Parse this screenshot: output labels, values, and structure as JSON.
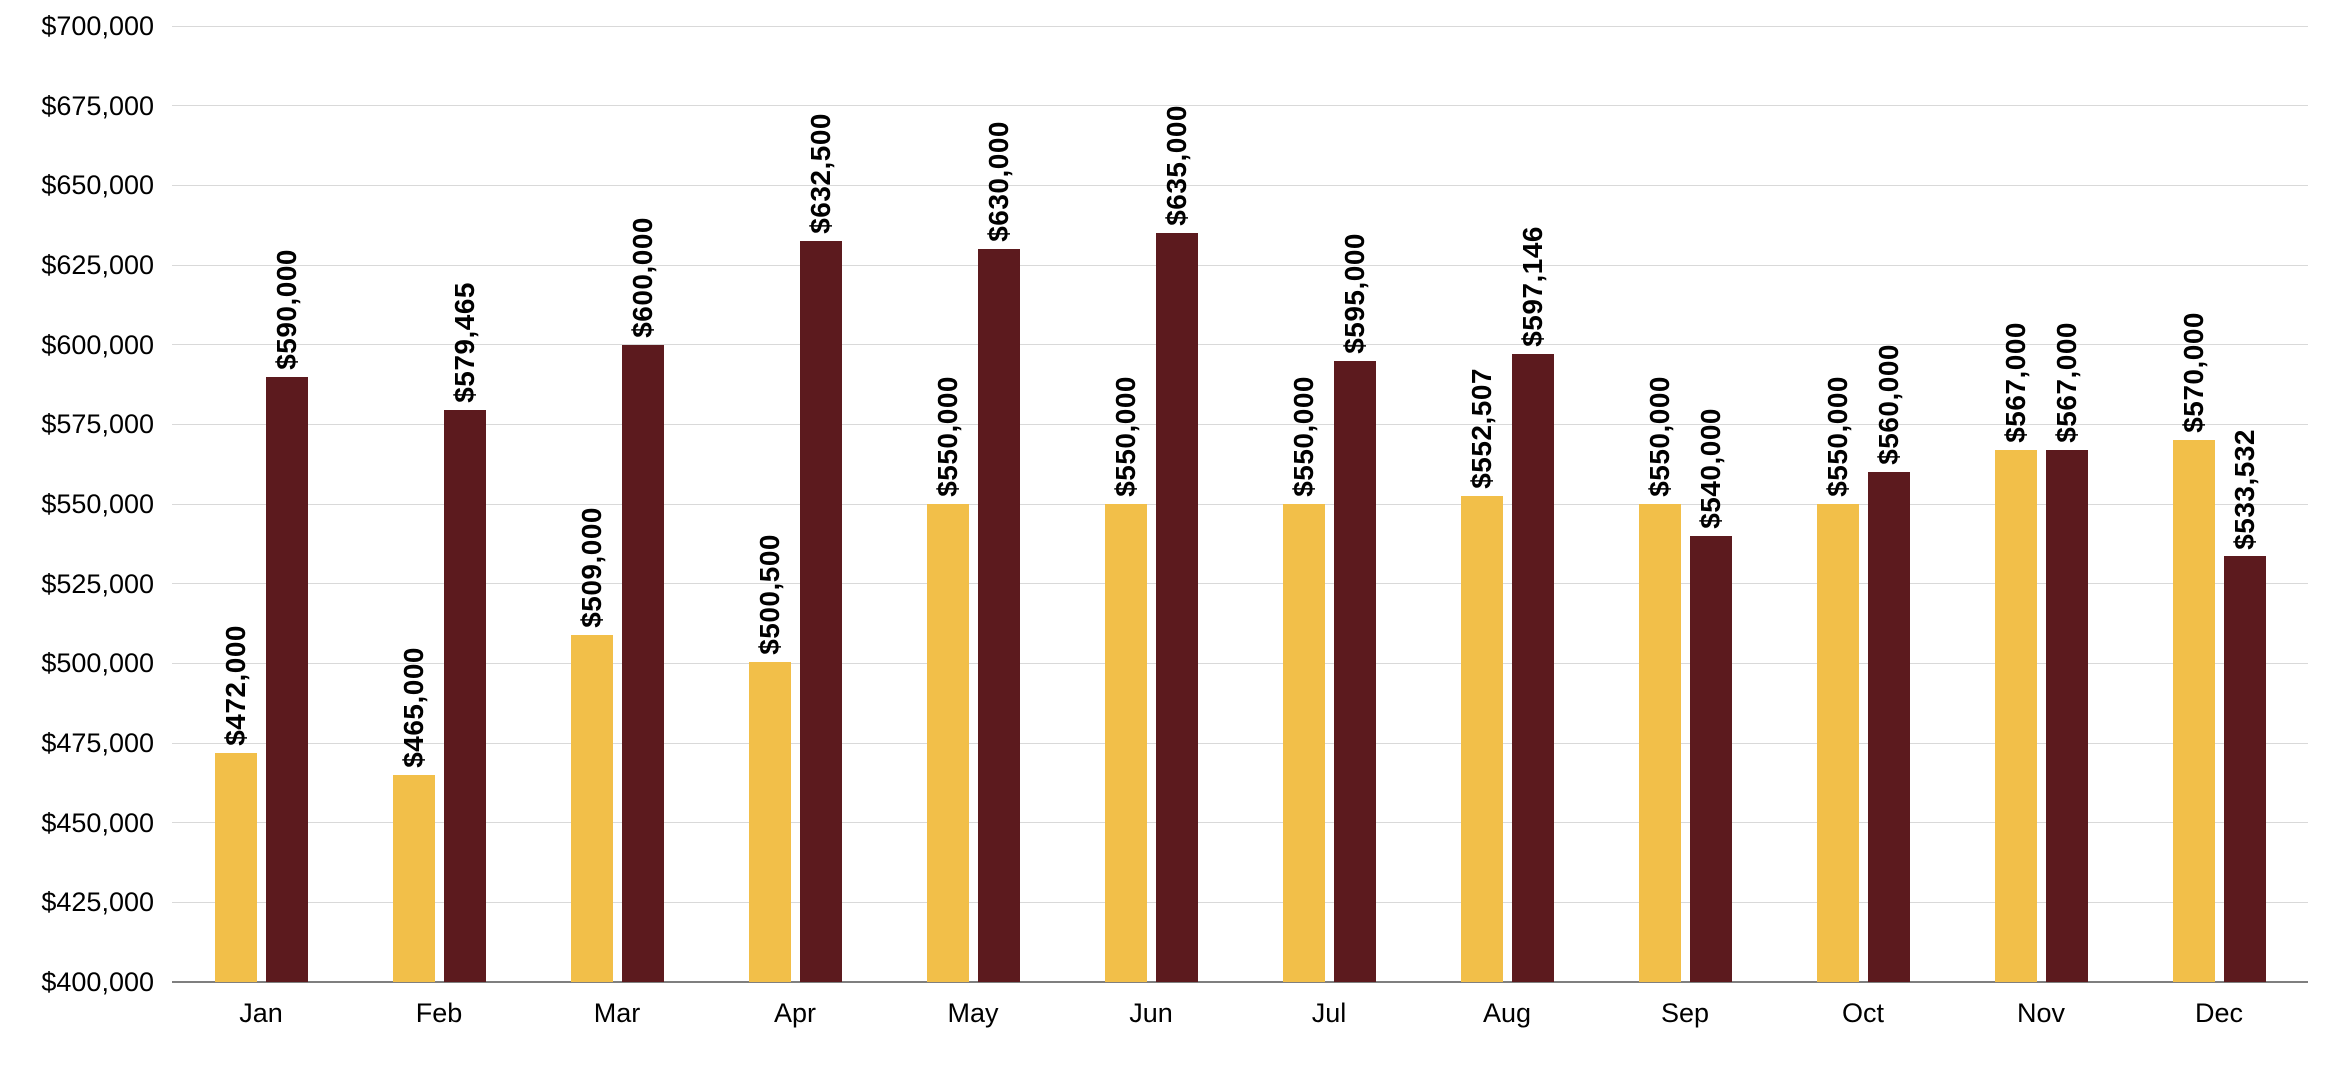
{
  "chart_data": {
    "type": "bar",
    "title": "",
    "xlabel": "",
    "ylabel": "",
    "grid": true,
    "legend": "none",
    "categories": [
      "Jan",
      "Feb",
      "Mar",
      "Apr",
      "May",
      "Jun",
      "Jul",
      "Aug",
      "Sep",
      "Oct",
      "Nov",
      "Dec"
    ],
    "series": [
      {
        "name": "series-1",
        "color": "#F2BF49",
        "values": [
          472000,
          465000,
          509000,
          500500,
          550000,
          550000,
          550000,
          552507,
          550000,
          550000,
          567000,
          570000
        ],
        "labels": [
          "$472,000",
          "$465,000",
          "$509,000",
          "$500,500",
          "$550,000",
          "$550,000",
          "$550,000",
          "$552,507",
          "$550,000",
          "$550,000",
          "$567,000",
          "$570,000"
        ]
      },
      {
        "name": "series-2",
        "color": "#5C1A1E",
        "values": [
          590000,
          579465,
          600000,
          632500,
          630000,
          635000,
          595000,
          597146,
          540000,
          560000,
          567000,
          533532
        ],
        "labels": [
          "$590,000",
          "$579,465",
          "$600,000",
          "$632,500",
          "$630,000",
          "$635,000",
          "$595,000",
          "$597,146",
          "$540,000",
          "$560,000",
          "$567,000",
          "$533,532"
        ]
      }
    ],
    "ylim": [
      400000,
      700000
    ],
    "ytick_step": 25000,
    "ytick_labels": [
      "$400,000",
      "$425,000",
      "$450,000",
      "$475,000",
      "$500,000",
      "$525,000",
      "$550,000",
      "$575,000",
      "$600,000",
      "$625,000",
      "$650,000",
      "$675,000",
      "$700,000"
    ],
    "colors": {
      "grid": "#d9d9d9",
      "axis": "#7f7f7f",
      "text": "#000000",
      "background": "#ffffff"
    }
  }
}
